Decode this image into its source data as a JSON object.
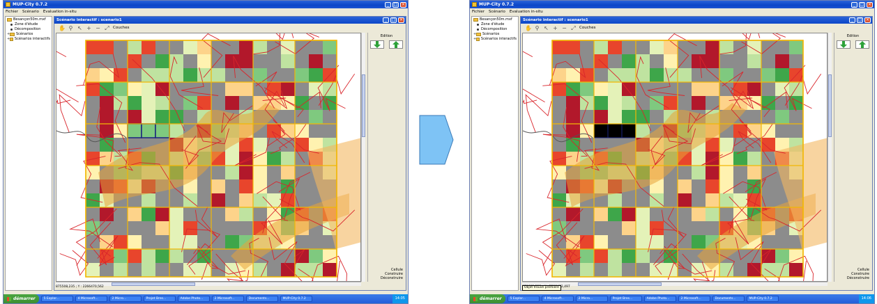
{
  "app": {
    "title": "MUP-City 0.7.2",
    "menu": [
      "Fichier",
      "Scénario",
      "Evaluation in-situ"
    ]
  },
  "tree": {
    "root": "Besançon50m.mxf",
    "items": [
      {
        "label": "Zone d'étude",
        "type": "leaf"
      },
      {
        "label": "Décomposition",
        "type": "leaf"
      },
      {
        "label": "Scénarios",
        "type": "folder"
      },
      {
        "label": "Scénarios interactifs",
        "type": "folder"
      }
    ]
  },
  "inner_window": {
    "title": "Scénario interactif : scenario1",
    "toolbar_label": "Couches"
  },
  "panel": {
    "edit_label": "Edition",
    "legend": [
      "Cellule",
      "Construire",
      "Déconstruire"
    ]
  },
  "screens": [
    {
      "status": "875508,235 ; Y : 2266470,562",
      "tooltip": "",
      "taskbar_items": [
        "5 Explor...",
        "4 Microsoft...",
        "2 Micro...",
        "Projet Bres...",
        "Adobe Photo...",
        "2 Microsoft...",
        "Documents...",
        "MUP-City 0.7.2"
      ],
      "clock": "14:05"
    },
    {
      "status": "879693,223 ; Y : 2298432,497",
      "tooltip": "Objet trouvé premiere",
      "taskbar_items": [
        "5 Explor...",
        "4 Microsoft...",
        "2 Micro...",
        "Projet Bres...",
        "Adobe Photo...",
        "2 Microsoft...",
        "Documents...",
        "MUP-City 0.7.2"
      ],
      "clock": "14:06"
    }
  ],
  "taskbar": {
    "start_label": "démarrer"
  },
  "colors": {
    "grid_line": "#f2b705",
    "road": "#d9252b",
    "river_zone": "#e8a43a",
    "cell_gray": "#8c8c8c",
    "selected_edit": "#000000",
    "arrow_green": "#2ea23a",
    "transition_arrow": "#7ec3f5"
  },
  "icons": {
    "build_arrow": "arrow-down-icon",
    "demolish_arrow": "arrow-up-icon",
    "transition": "chevron-right-icon"
  }
}
